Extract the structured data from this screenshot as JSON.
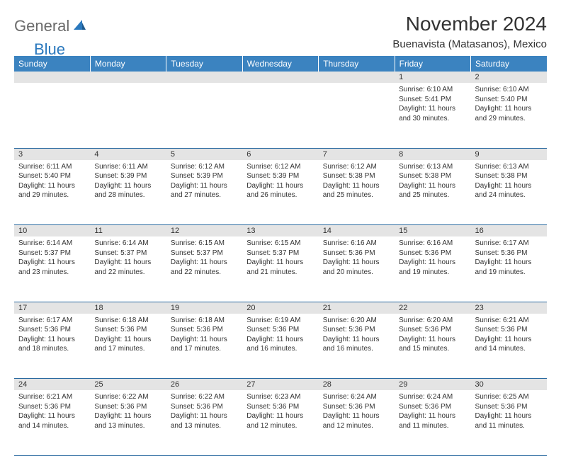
{
  "logo": {
    "word1": "General",
    "word2": "Blue"
  },
  "title": "November 2024",
  "location": "Buenavista (Matasanos), Mexico",
  "colors": {
    "header_bg": "#3b83c0",
    "header_text": "#ffffff",
    "daynum_bg": "#e4e4e4",
    "row_border": "#2a6aa0",
    "logo_gray": "#6b6b6b",
    "logo_blue": "#2a78bd",
    "text": "#333333",
    "background": "#ffffff"
  },
  "typography": {
    "month_title_size": 28,
    "location_size": 15,
    "weekday_size": 12,
    "daynum_size": 11,
    "body_size": 10
  },
  "weekdays": [
    "Sunday",
    "Monday",
    "Tuesday",
    "Wednesday",
    "Thursday",
    "Friday",
    "Saturday"
  ],
  "weeks": [
    {
      "nums": [
        "",
        "",
        "",
        "",
        "",
        "1",
        "2"
      ],
      "cells": [
        null,
        null,
        null,
        null,
        null,
        {
          "sunrise": "Sunrise: 6:10 AM",
          "sunset": "Sunset: 5:41 PM",
          "day1": "Daylight: 11 hours",
          "day2": "and 30 minutes."
        },
        {
          "sunrise": "Sunrise: 6:10 AM",
          "sunset": "Sunset: 5:40 PM",
          "day1": "Daylight: 11 hours",
          "day2": "and 29 minutes."
        }
      ]
    },
    {
      "nums": [
        "3",
        "4",
        "5",
        "6",
        "7",
        "8",
        "9"
      ],
      "cells": [
        {
          "sunrise": "Sunrise: 6:11 AM",
          "sunset": "Sunset: 5:40 PM",
          "day1": "Daylight: 11 hours",
          "day2": "and 29 minutes."
        },
        {
          "sunrise": "Sunrise: 6:11 AM",
          "sunset": "Sunset: 5:39 PM",
          "day1": "Daylight: 11 hours",
          "day2": "and 28 minutes."
        },
        {
          "sunrise": "Sunrise: 6:12 AM",
          "sunset": "Sunset: 5:39 PM",
          "day1": "Daylight: 11 hours",
          "day2": "and 27 minutes."
        },
        {
          "sunrise": "Sunrise: 6:12 AM",
          "sunset": "Sunset: 5:39 PM",
          "day1": "Daylight: 11 hours",
          "day2": "and 26 minutes."
        },
        {
          "sunrise": "Sunrise: 6:12 AM",
          "sunset": "Sunset: 5:38 PM",
          "day1": "Daylight: 11 hours",
          "day2": "and 25 minutes."
        },
        {
          "sunrise": "Sunrise: 6:13 AM",
          "sunset": "Sunset: 5:38 PM",
          "day1": "Daylight: 11 hours",
          "day2": "and 25 minutes."
        },
        {
          "sunrise": "Sunrise: 6:13 AM",
          "sunset": "Sunset: 5:38 PM",
          "day1": "Daylight: 11 hours",
          "day2": "and 24 minutes."
        }
      ]
    },
    {
      "nums": [
        "10",
        "11",
        "12",
        "13",
        "14",
        "15",
        "16"
      ],
      "cells": [
        {
          "sunrise": "Sunrise: 6:14 AM",
          "sunset": "Sunset: 5:37 PM",
          "day1": "Daylight: 11 hours",
          "day2": "and 23 minutes."
        },
        {
          "sunrise": "Sunrise: 6:14 AM",
          "sunset": "Sunset: 5:37 PM",
          "day1": "Daylight: 11 hours",
          "day2": "and 22 minutes."
        },
        {
          "sunrise": "Sunrise: 6:15 AM",
          "sunset": "Sunset: 5:37 PM",
          "day1": "Daylight: 11 hours",
          "day2": "and 22 minutes."
        },
        {
          "sunrise": "Sunrise: 6:15 AM",
          "sunset": "Sunset: 5:37 PM",
          "day1": "Daylight: 11 hours",
          "day2": "and 21 minutes."
        },
        {
          "sunrise": "Sunrise: 6:16 AM",
          "sunset": "Sunset: 5:36 PM",
          "day1": "Daylight: 11 hours",
          "day2": "and 20 minutes."
        },
        {
          "sunrise": "Sunrise: 6:16 AM",
          "sunset": "Sunset: 5:36 PM",
          "day1": "Daylight: 11 hours",
          "day2": "and 19 minutes."
        },
        {
          "sunrise": "Sunrise: 6:17 AM",
          "sunset": "Sunset: 5:36 PM",
          "day1": "Daylight: 11 hours",
          "day2": "and 19 minutes."
        }
      ]
    },
    {
      "nums": [
        "17",
        "18",
        "19",
        "20",
        "21",
        "22",
        "23"
      ],
      "cells": [
        {
          "sunrise": "Sunrise: 6:17 AM",
          "sunset": "Sunset: 5:36 PM",
          "day1": "Daylight: 11 hours",
          "day2": "and 18 minutes."
        },
        {
          "sunrise": "Sunrise: 6:18 AM",
          "sunset": "Sunset: 5:36 PM",
          "day1": "Daylight: 11 hours",
          "day2": "and 17 minutes."
        },
        {
          "sunrise": "Sunrise: 6:18 AM",
          "sunset": "Sunset: 5:36 PM",
          "day1": "Daylight: 11 hours",
          "day2": "and 17 minutes."
        },
        {
          "sunrise": "Sunrise: 6:19 AM",
          "sunset": "Sunset: 5:36 PM",
          "day1": "Daylight: 11 hours",
          "day2": "and 16 minutes."
        },
        {
          "sunrise": "Sunrise: 6:20 AM",
          "sunset": "Sunset: 5:36 PM",
          "day1": "Daylight: 11 hours",
          "day2": "and 16 minutes."
        },
        {
          "sunrise": "Sunrise: 6:20 AM",
          "sunset": "Sunset: 5:36 PM",
          "day1": "Daylight: 11 hours",
          "day2": "and 15 minutes."
        },
        {
          "sunrise": "Sunrise: 6:21 AM",
          "sunset": "Sunset: 5:36 PM",
          "day1": "Daylight: 11 hours",
          "day2": "and 14 minutes."
        }
      ]
    },
    {
      "nums": [
        "24",
        "25",
        "26",
        "27",
        "28",
        "29",
        "30"
      ],
      "cells": [
        {
          "sunrise": "Sunrise: 6:21 AM",
          "sunset": "Sunset: 5:36 PM",
          "day1": "Daylight: 11 hours",
          "day2": "and 14 minutes."
        },
        {
          "sunrise": "Sunrise: 6:22 AM",
          "sunset": "Sunset: 5:36 PM",
          "day1": "Daylight: 11 hours",
          "day2": "and 13 minutes."
        },
        {
          "sunrise": "Sunrise: 6:22 AM",
          "sunset": "Sunset: 5:36 PM",
          "day1": "Daylight: 11 hours",
          "day2": "and 13 minutes."
        },
        {
          "sunrise": "Sunrise: 6:23 AM",
          "sunset": "Sunset: 5:36 PM",
          "day1": "Daylight: 11 hours",
          "day2": "and 12 minutes."
        },
        {
          "sunrise": "Sunrise: 6:24 AM",
          "sunset": "Sunset: 5:36 PM",
          "day1": "Daylight: 11 hours",
          "day2": "and 12 minutes."
        },
        {
          "sunrise": "Sunrise: 6:24 AM",
          "sunset": "Sunset: 5:36 PM",
          "day1": "Daylight: 11 hours",
          "day2": "and 11 minutes."
        },
        {
          "sunrise": "Sunrise: 6:25 AM",
          "sunset": "Sunset: 5:36 PM",
          "day1": "Daylight: 11 hours",
          "day2": "and 11 minutes."
        }
      ]
    }
  ]
}
